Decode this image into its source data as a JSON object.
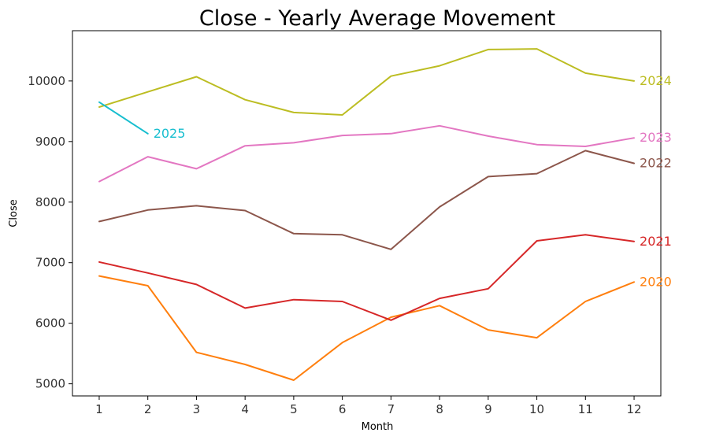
{
  "chart_data": {
    "type": "line",
    "title": "Close - Yearly Average Movement",
    "xlabel": "Month",
    "ylabel": "Close",
    "x": [
      1,
      2,
      3,
      4,
      5,
      6,
      7,
      8,
      9,
      10,
      11,
      12
    ],
    "xlim": [
      0.45,
      12.55
    ],
    "ylim": [
      4800,
      10830
    ],
    "yticks": [
      5000,
      6000,
      7000,
      8000,
      9000,
      10000
    ],
    "grid": false,
    "legend": "none",
    "series": [
      {
        "name": "2020",
        "color": "#ff7f0e",
        "values": [
          6780,
          6620,
          5520,
          5320,
          5060,
          5680,
          6100,
          6290,
          5890,
          5760,
          6360,
          6680
        ]
      },
      {
        "name": "2021",
        "color": "#d62728",
        "values": [
          7010,
          6830,
          6640,
          6250,
          6390,
          6360,
          6050,
          6410,
          6570,
          7360,
          7460,
          7350
        ]
      },
      {
        "name": "2022",
        "color": "#8c564b",
        "values": [
          7680,
          7870,
          7940,
          7860,
          7480,
          7460,
          7220,
          7920,
          8420,
          8470,
          8850,
          8640
        ]
      },
      {
        "name": "2023",
        "color": "#e377c2",
        "values": [
          8340,
          8750,
          8550,
          8930,
          8980,
          9100,
          9130,
          9260,
          9090,
          8950,
          8920,
          9060
        ]
      },
      {
        "name": "2024",
        "color": "#bcbd22",
        "values": [
          9570,
          9820,
          10070,
          9690,
          9480,
          9440,
          10080,
          10250,
          10520,
          10530,
          10130,
          10000
        ]
      },
      {
        "name": "2025",
        "color": "#17becf",
        "values": [
          9650,
          9130,
          null,
          null,
          null,
          null,
          null,
          null,
          null,
          null,
          null,
          null
        ]
      }
    ]
  }
}
